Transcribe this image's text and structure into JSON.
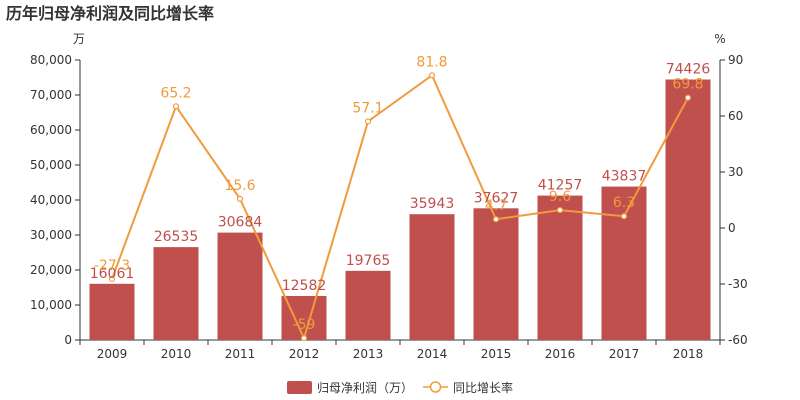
{
  "chart_data": {
    "type": "bar",
    "title": "历年归母净利润及同比增长率",
    "categories": [
      "2009",
      "2010",
      "2011",
      "2012",
      "2013",
      "2014",
      "2015",
      "2016",
      "2017",
      "2018"
    ],
    "series": [
      {
        "name": "归母净利润（万）",
        "type": "bar",
        "axis": "left",
        "color": "#c0504d",
        "values": [
          16061,
          26535,
          30684,
          12582,
          19765,
          35943,
          37627,
          41257,
          43837,
          74426
        ],
        "labels": [
          "16061",
          "26535",
          "30684",
          "12582",
          "19765",
          "35943",
          "37627",
          "41257",
          "43837",
          "74426"
        ]
      },
      {
        "name": "同比增长率",
        "type": "line",
        "axis": "right",
        "color": "#f09b3c",
        "values": [
          -27.3,
          65.2,
          15.6,
          -59,
          57.1,
          81.8,
          4.7,
          9.6,
          6.3,
          69.8
        ],
        "labels": [
          "-27.3",
          "65.2",
          "15.6",
          "-59",
          "57.1",
          "81.8",
          "4.7",
          "9.6",
          "6.3",
          "69.8"
        ]
      }
    ],
    "y_left": {
      "unit": "万",
      "ylim": [
        0,
        80000
      ],
      "ticks": [
        0,
        10000,
        20000,
        30000,
        40000,
        50000,
        60000,
        70000,
        80000
      ],
      "tick_labels": [
        "0",
        "10,000",
        "20,000",
        "30,000",
        "40,000",
        "50,000",
        "60,000",
        "70,000",
        "80,000"
      ]
    },
    "y_right": {
      "unit": "%",
      "ylim": [
        -60,
        90
      ],
      "ticks": [
        -60,
        -30,
        0,
        30,
        60,
        90
      ],
      "tick_labels": [
        "-60",
        "-30",
        "0",
        "30",
        "60",
        "90"
      ]
    },
    "grid": false,
    "legend": "bottom-center"
  }
}
